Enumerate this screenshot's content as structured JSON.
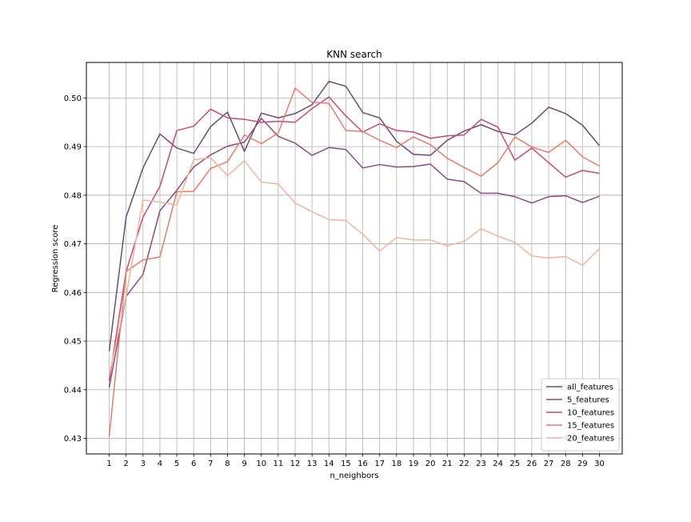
{
  "chart_data": {
    "type": "line",
    "title": "KNN search",
    "xlabel": "n_neighbors",
    "ylabel": "Regression score",
    "x": [
      1,
      2,
      3,
      4,
      5,
      6,
      7,
      8,
      9,
      10,
      11,
      12,
      13,
      14,
      15,
      16,
      17,
      18,
      19,
      20,
      21,
      22,
      23,
      24,
      25,
      26,
      27,
      28,
      29,
      30
    ],
    "xlim": [
      -0.35,
      31.35
    ],
    "ylim": [
      0.4268,
      0.5073
    ],
    "yticks": [
      0.43,
      0.44,
      0.45,
      0.46,
      0.47,
      0.48,
      0.49,
      0.5
    ],
    "ytick_labels": [
      "0.43",
      "0.44",
      "0.45",
      "0.46",
      "0.47",
      "0.48",
      "0.49",
      "0.50"
    ],
    "grid": true,
    "legend_position": "lower-right",
    "series": [
      {
        "name": "all_features",
        "color": "#6b4c6e",
        "values": [
          0.4479,
          0.4755,
          0.4856,
          0.4926,
          0.4897,
          0.4886,
          0.4941,
          0.4971,
          0.489,
          0.4969,
          0.4959,
          0.4968,
          0.4986,
          0.5034,
          0.5024,
          0.497,
          0.4959,
          0.4911,
          0.4884,
          0.4882,
          0.4913,
          0.4932,
          0.4945,
          0.4931,
          0.4924,
          0.4948,
          0.4981,
          0.4968,
          0.4944,
          0.4902
        ]
      },
      {
        "name": "5_features",
        "color": "#8a4a80",
        "values": [
          0.4404,
          0.4592,
          0.4637,
          0.4768,
          0.481,
          0.4858,
          0.4883,
          0.4901,
          0.4909,
          0.4958,
          0.4921,
          0.4907,
          0.4882,
          0.4898,
          0.4894,
          0.4856,
          0.4863,
          0.4858,
          0.4859,
          0.4864,
          0.4833,
          0.4828,
          0.4804,
          0.4804,
          0.4797,
          0.4784,
          0.4797,
          0.4799,
          0.4785,
          0.4798
        ]
      },
      {
        "name": "10_features",
        "color": "#c44a72",
        "values": [
          0.4418,
          0.4643,
          0.4755,
          0.4818,
          0.4933,
          0.4942,
          0.4977,
          0.4959,
          0.4956,
          0.495,
          0.4952,
          0.495,
          0.4978,
          0.5002,
          0.4963,
          0.493,
          0.4947,
          0.4933,
          0.493,
          0.4917,
          0.4922,
          0.4924,
          0.4956,
          0.494,
          0.4872,
          0.4897,
          0.4867,
          0.4837,
          0.4851,
          0.4845
        ]
      },
      {
        "name": "15_features",
        "color": "#e87a68",
        "values": [
          0.4303,
          0.4643,
          0.4667,
          0.4673,
          0.4807,
          0.4808,
          0.4855,
          0.4869,
          0.4924,
          0.4906,
          0.4928,
          0.502,
          0.4991,
          0.4989,
          0.4933,
          0.4931,
          0.4913,
          0.4898,
          0.492,
          0.4904,
          0.4876,
          0.4857,
          0.4839,
          0.4867,
          0.492,
          0.4899,
          0.4888,
          0.4913,
          0.4879,
          0.486
        ]
      },
      {
        "name": "20_features",
        "color": "#f2b497",
        "values": [
          0.443,
          0.4592,
          0.479,
          0.4786,
          0.478,
          0.4873,
          0.4877,
          0.484,
          0.4871,
          0.4827,
          0.4823,
          0.4784,
          0.4766,
          0.475,
          0.4748,
          0.472,
          0.4685,
          0.4713,
          0.4708,
          0.4708,
          0.4696,
          0.4705,
          0.4731,
          0.4716,
          0.4703,
          0.4675,
          0.4671,
          0.4674,
          0.4656,
          0.469
        ]
      }
    ]
  }
}
